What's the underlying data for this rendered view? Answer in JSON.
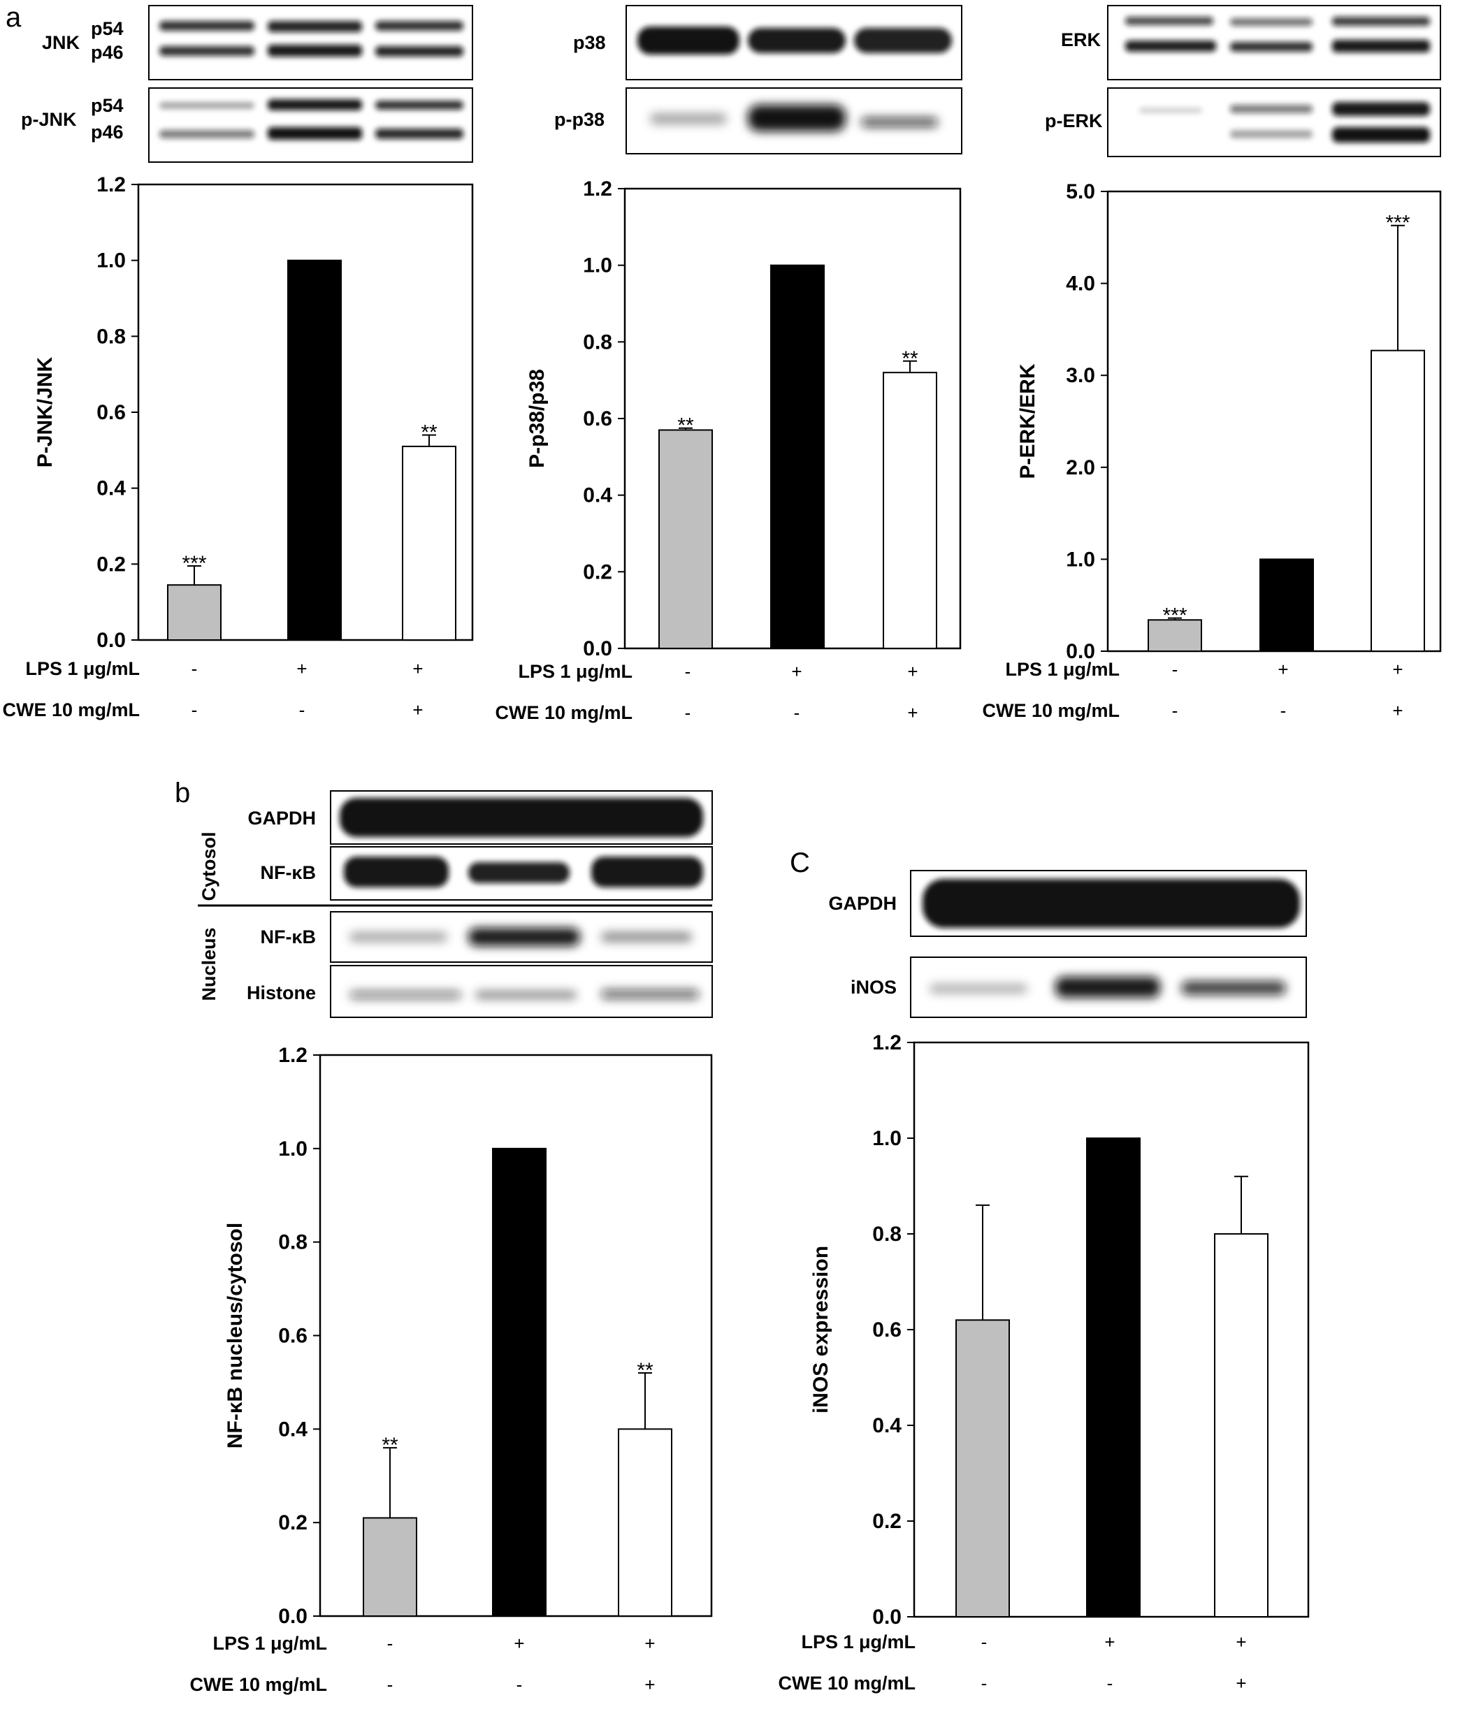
{
  "panel_letters": {
    "a": "a",
    "b": "b",
    "c": "C"
  },
  "colors": {
    "bar1": "#bfbfbf",
    "bar2": "#000000",
    "bar3": "#ffffff",
    "band": "#0d0d0d"
  },
  "blots": {
    "jnk": {
      "total": "JNK",
      "phospho": "p-JNK",
      "upper": "p54",
      "lower": "p46"
    },
    "p38": {
      "total": "p38",
      "phospho": "p-p38"
    },
    "erk": {
      "total": "ERK",
      "phospho": "p-ERK"
    },
    "nfkb": {
      "cytosol": "Cytosol",
      "nucleus": "Nucleus",
      "gapdh": "GAPDH",
      "nfkb_cyto": "NF-κB",
      "nfkb_nuc": "NF-κB",
      "histone": "Histone"
    },
    "inos": {
      "gapdh": "GAPDH",
      "inos": "iNOS"
    }
  },
  "chart_data": [
    {
      "type": "bar",
      "panel": "a",
      "ylabel": "P-JNK/JNK",
      "ylim": [
        0,
        1.2
      ],
      "yticks": [
        "0.0",
        "0.2",
        "0.4",
        "0.6",
        "0.8",
        "1.0",
        "1.2"
      ],
      "values": [
        0.145,
        1.0,
        0.51
      ],
      "errors": [
        0.05,
        0,
        0.03
      ],
      "significance": [
        "***",
        "",
        "**"
      ],
      "treatments": [
        {
          "label": "LPS 1 μg/mL",
          "signs": [
            "-",
            "+",
            "+"
          ]
        },
        {
          "label": "CWE 10 mg/mL",
          "signs": [
            "-",
            "-",
            "+"
          ]
        }
      ]
    },
    {
      "type": "bar",
      "panel": "a",
      "ylabel": "P-p38/p38",
      "ylim": [
        0,
        1.2
      ],
      "yticks": [
        "0.0",
        "0.2",
        "0.4",
        "0.6",
        "0.8",
        "1.0",
        "1.2"
      ],
      "values": [
        0.57,
        1.0,
        0.72
      ],
      "errors": [
        0.005,
        0,
        0.03
      ],
      "significance": [
        "**",
        "",
        "**"
      ],
      "treatments": [
        {
          "label": "LPS 1 μg/mL",
          "signs": [
            "-",
            "+",
            "+"
          ]
        },
        {
          "label": "CWE  10 mg/mL",
          "signs": [
            "-",
            "-",
            "+"
          ]
        }
      ]
    },
    {
      "type": "bar",
      "panel": "a",
      "ylabel": "P-ERK/ERK",
      "ylim": [
        0,
        5.0
      ],
      "yticks": [
        "0.0",
        "1.0",
        "2.0",
        "3.0",
        "4.0",
        "5.0"
      ],
      "values": [
        0.34,
        1.0,
        3.27
      ],
      "errors": [
        0.02,
        0,
        1.36
      ],
      "significance": [
        "***",
        "",
        "***"
      ],
      "treatments": [
        {
          "label": "LPS 1 μg/mL",
          "signs": [
            "-",
            "+",
            "+"
          ]
        },
        {
          "label": "CWE 10 mg/mL",
          "signs": [
            "-",
            "-",
            "+"
          ]
        }
      ]
    },
    {
      "type": "bar",
      "panel": "b",
      "ylabel": "NF-κB nucleus/cytosol",
      "ylim": [
        0,
        1.2
      ],
      "yticks": [
        "0.0",
        "0.2",
        "0.4",
        "0.6",
        "0.8",
        "1.0",
        "1.2"
      ],
      "values": [
        0.21,
        1.0,
        0.4
      ],
      "errors": [
        0.15,
        0,
        0.12
      ],
      "significance": [
        "**",
        "",
        "**"
      ],
      "treatments": [
        {
          "label": "LPS 1 μg/mL",
          "signs": [
            "-",
            "+",
            "+"
          ]
        },
        {
          "label": "CWE 10 mg/mL",
          "signs": [
            "-",
            "-",
            "+"
          ]
        }
      ]
    },
    {
      "type": "bar",
      "panel": "c",
      "ylabel": "iNOS expression",
      "ylim": [
        0,
        1.2
      ],
      "yticks": [
        "0.0",
        "0.2",
        "0.4",
        "0.6",
        "0.8",
        "1.0",
        "1.2"
      ],
      "values": [
        0.62,
        1.0,
        0.8
      ],
      "errors": [
        0.24,
        0,
        0.12
      ],
      "significance": [
        "",
        "",
        ""
      ],
      "treatments": [
        {
          "label": "LPS 1 μg/mL",
          "signs": [
            "-",
            "+",
            "+"
          ]
        },
        {
          "label": "CWE  10 mg/mL",
          "signs": [
            "-",
            "-",
            "+"
          ]
        }
      ]
    }
  ]
}
